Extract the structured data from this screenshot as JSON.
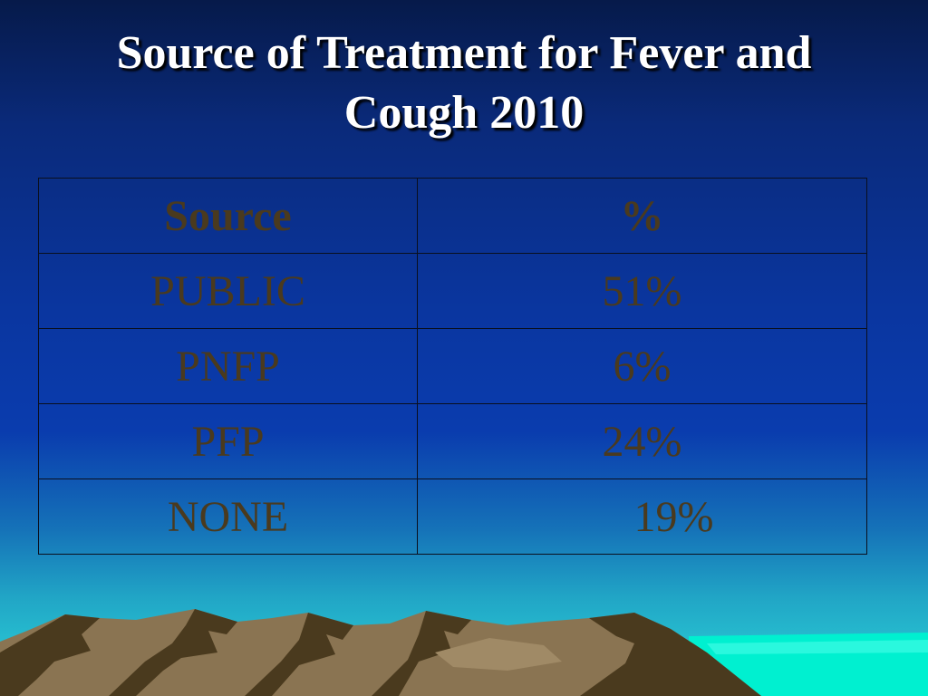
{
  "title": {
    "line1": "Source of Treatment for Fever and",
    "line2": "Cough 2010"
  },
  "table": {
    "headers": {
      "source": "Source",
      "percent": "%"
    },
    "rows": [
      {
        "source": "PUBLIC",
        "percent": "51%"
      },
      {
        "source": "PNFP",
        "percent": "6%"
      },
      {
        "source": "PFP",
        "percent": "24%"
      },
      {
        "source": "NONE",
        "percent": "19%"
      }
    ]
  },
  "colors": {
    "text": "#4a3a1e",
    "title": "#ffffff",
    "sea": "#00f0d0",
    "mountain_light": "#8a7452",
    "mountain_dark": "#4a3a1e"
  }
}
